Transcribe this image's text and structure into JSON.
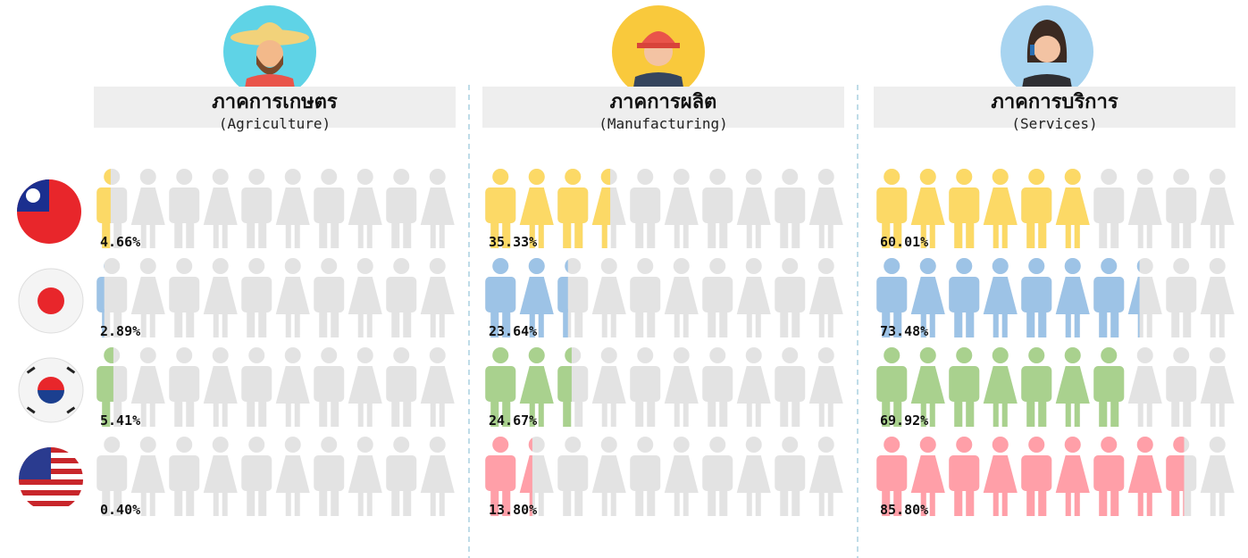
{
  "chart_data": {
    "type": "pictogram",
    "categories": [
      "ภาคการเกษตร",
      "ภาคการผลิต",
      "ภาคการบริการ"
    ],
    "category_subtitles": [
      "(Agriculture)",
      "(Manufacturing)",
      "(Services)"
    ],
    "ylim": [
      0,
      100
    ],
    "series": [
      {
        "color": "#fcd966",
        "values": [
          4.66,
          35.33,
          60.01
        ],
        "value_labels": [
          "4.66%",
          "35.33%",
          "60.01%"
        ]
      },
      {
        "color": "#9dc3e6",
        "values": [
          2.89,
          23.64,
          73.48
        ],
        "value_labels": [
          "2.89%",
          "23.64%",
          "73.48%"
        ]
      },
      {
        "color": "#a9d18e",
        "values": [
          5.41,
          24.67,
          69.92
        ],
        "value_labels": [
          "5.41%",
          "24.67%",
          "69.92%"
        ]
      },
      {
        "color": "#ff9fa8",
        "values": [
          0.4,
          13.8,
          85.8
        ],
        "value_labels": [
          "0.40%",
          "13.80%",
          "85.80%"
        ]
      }
    ]
  }
}
